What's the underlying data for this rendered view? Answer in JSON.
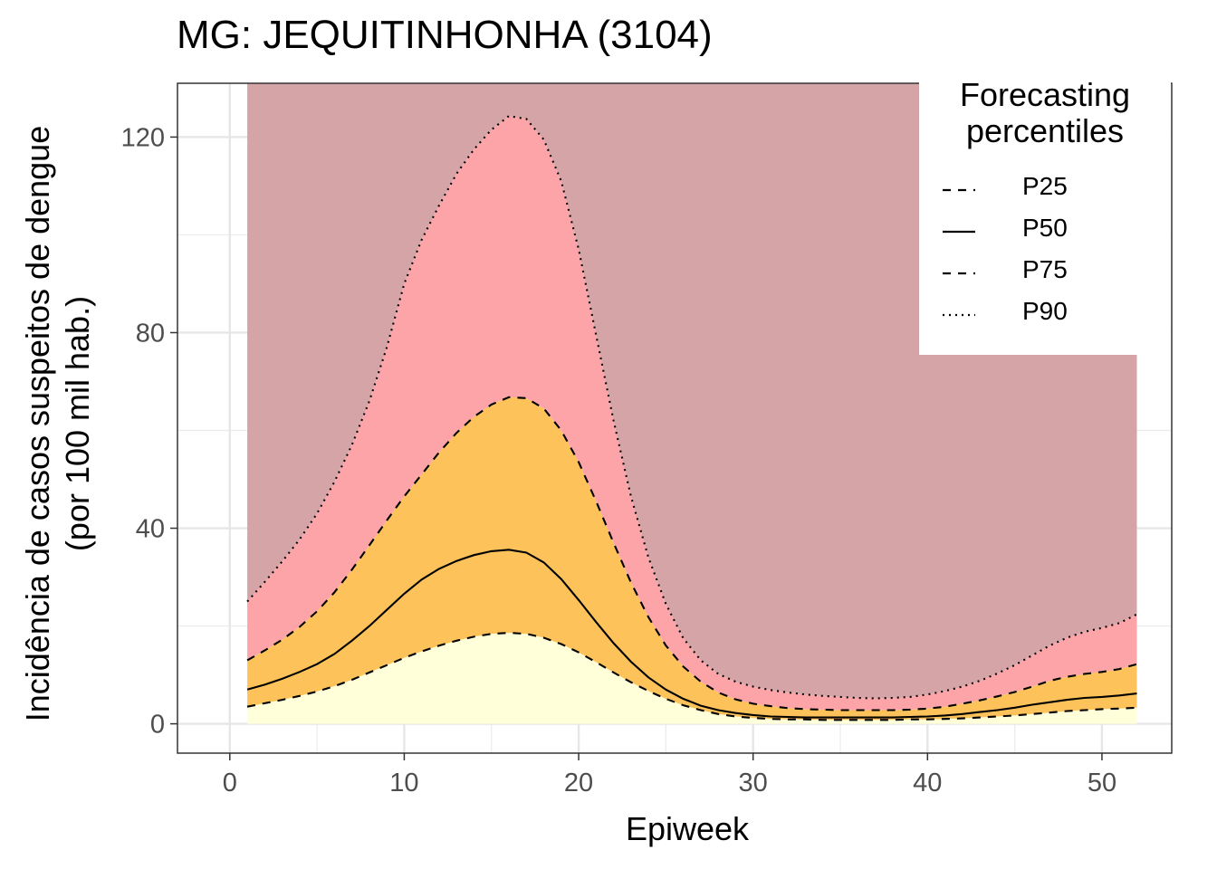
{
  "title": "MG: JEQUITINHONHA (3104)",
  "chart_data": {
    "type": "area",
    "title": "MG: JEQUITINHONHA (3104)",
    "xlabel": "Epiweek",
    "ylabel_line1": "Incidência de casos suspeitos de dengue",
    "ylabel_line2": "(por 100 mil hab.)",
    "xlim": [
      -3,
      54
    ],
    "ylim": [
      -6,
      131
    ],
    "xticks": [
      0,
      10,
      20,
      30,
      40,
      50
    ],
    "yticks": [
      0,
      40,
      80,
      120
    ],
    "grid": true,
    "legend": {
      "title_line1": "Forecasting",
      "title_line2": "percentiles",
      "placement": "top-right",
      "items": [
        {
          "label": "P25",
          "dash": "dashed"
        },
        {
          "label": "P50",
          "dash": "solid"
        },
        {
          "label": "P75",
          "dash": "dashed"
        },
        {
          "label": "P90",
          "dash": "dotted"
        }
      ]
    },
    "band_colors": [
      "#FFFFDA",
      "#FDC35A",
      "#FDA4A8",
      "#D4A4A7"
    ],
    "epiweeks": [
      1,
      2,
      3,
      4,
      5,
      6,
      7,
      8,
      9,
      10,
      11,
      12,
      13,
      14,
      15,
      16,
      17,
      18,
      19,
      20,
      21,
      22,
      23,
      24,
      25,
      26,
      27,
      28,
      29,
      30,
      31,
      32,
      33,
      34,
      35,
      36,
      37,
      38,
      39,
      40,
      41,
      42,
      43,
      44,
      45,
      46,
      47,
      48,
      49,
      50,
      51,
      52
    ],
    "series": [
      {
        "name": "P25",
        "values": [
          3.5,
          4.2,
          4.9,
          5.7,
          6.6,
          7.7,
          9.0,
          10.5,
          12.0,
          13.5,
          14.8,
          16.0,
          17.0,
          17.8,
          18.4,
          18.6,
          18.4,
          17.6,
          16.3,
          14.6,
          12.6,
          10.5,
          8.5,
          6.7,
          5.1,
          3.8,
          2.8,
          2.0,
          1.5,
          1.2,
          1.0,
          0.9,
          0.9,
          0.8,
          0.8,
          0.8,
          0.8,
          0.8,
          0.9,
          0.9,
          1.0,
          1.1,
          1.3,
          1.5,
          1.7,
          2.0,
          2.3,
          2.6,
          2.8,
          3.0,
          3.1,
          3.3
        ]
      },
      {
        "name": "P50",
        "values": [
          7.0,
          8.0,
          9.2,
          10.6,
          12.2,
          14.3,
          17.0,
          20.0,
          23.3,
          26.6,
          29.5,
          31.7,
          33.3,
          34.5,
          35.3,
          35.6,
          35.0,
          33.0,
          29.6,
          25.3,
          20.8,
          16.5,
          12.7,
          9.5,
          7.0,
          5.1,
          3.7,
          2.8,
          2.2,
          1.8,
          1.5,
          1.4,
          1.3,
          1.3,
          1.3,
          1.3,
          1.3,
          1.3,
          1.4,
          1.5,
          1.7,
          2.0,
          2.4,
          2.8,
          3.3,
          3.9,
          4.4,
          4.9,
          5.3,
          5.5,
          5.8,
          6.2
        ]
      },
      {
        "name": "P75",
        "values": [
          13.0,
          15.0,
          17.2,
          19.8,
          23.0,
          26.9,
          31.5,
          36.5,
          41.6,
          46.5,
          51.0,
          55.5,
          59.5,
          62.8,
          65.3,
          66.8,
          66.6,
          64.5,
          60.0,
          53.5,
          45.5,
          37.0,
          28.9,
          21.8,
          16.0,
          11.7,
          8.6,
          6.4,
          5.0,
          4.1,
          3.6,
          3.2,
          3.0,
          2.9,
          2.8,
          2.8,
          2.8,
          2.8,
          2.9,
          3.1,
          3.5,
          4.1,
          4.8,
          5.6,
          6.5,
          7.6,
          8.8,
          9.6,
          10.2,
          10.6,
          11.2,
          12.2
        ]
      },
      {
        "name": "P90",
        "values": [
          25.0,
          29.0,
          33.2,
          37.7,
          43.0,
          49.5,
          57.0,
          66.0,
          77.0,
          90.0,
          99.0,
          106.0,
          112.5,
          117.5,
          121.5,
          124.3,
          123.7,
          119.5,
          111.0,
          97.0,
          79.5,
          62.0,
          46.5,
          34.0,
          24.5,
          17.5,
          13.0,
          10.2,
          8.6,
          7.6,
          6.9,
          6.4,
          6.0,
          5.7,
          5.5,
          5.3,
          5.2,
          5.3,
          5.5,
          6.0,
          6.7,
          7.6,
          8.8,
          10.3,
          12.0,
          14.0,
          16.0,
          17.6,
          18.8,
          19.6,
          20.6,
          22.4
        ]
      }
    ]
  }
}
